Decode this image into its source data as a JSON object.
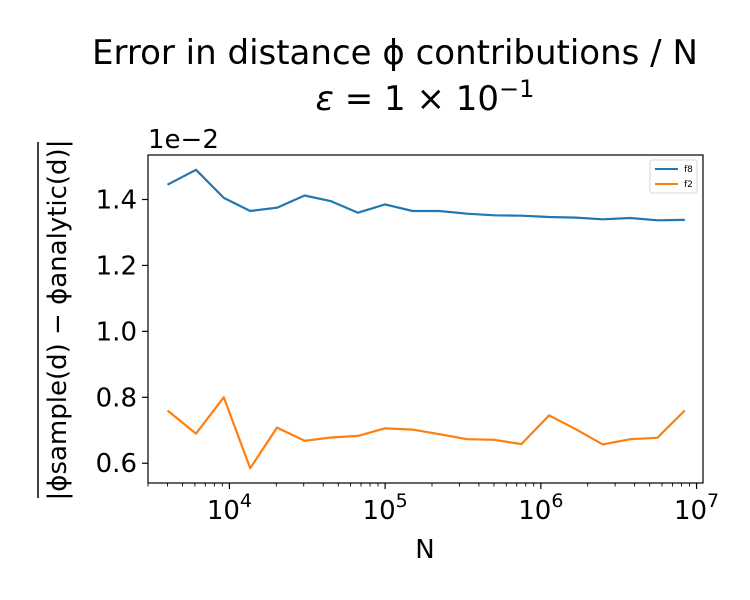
{
  "chart_data": {
    "type": "line",
    "title_line1": "Error in distance ϕ contributions / N",
    "title_eps": "ε",
    "title_rest": " = 1 × 10",
    "title_exp": "−1",
    "xlabel": "N",
    "ylabel": "|ϕsample(d) − ϕanalytic(d)|",
    "y_offset_label": "1e−2",
    "x_scale": "log",
    "xlim": [
      3000,
      11000000
    ],
    "ylim": [
      0.54,
      1.535
    ],
    "y_ticks": [
      {
        "value": 0.6,
        "label": "0.6"
      },
      {
        "value": 0.8,
        "label": "0.8"
      },
      {
        "value": 1.0,
        "label": "1.0"
      },
      {
        "value": 1.2,
        "label": "1.2"
      },
      {
        "value": 1.4,
        "label": "1.4"
      }
    ],
    "x_ticks": [
      {
        "value": 10000,
        "base": "10",
        "exp": "4"
      },
      {
        "value": 100000,
        "base": "10",
        "exp": "5"
      },
      {
        "value": 1000000,
        "base": "10",
        "exp": "6"
      },
      {
        "value": 10000000,
        "base": "10",
        "exp": "7"
      }
    ],
    "grid": false,
    "legend_position": "top-right",
    "series": [
      {
        "name": "f8",
        "color": "#1f77b4",
        "x": [
          4000,
          6100,
          9200,
          13600,
          20200,
          30400,
          45000,
          67000,
          100000,
          150000,
          223000,
          336000,
          500000,
          750000,
          1130000,
          1680000,
          2500000,
          3750000,
          5600000,
          8400000
        ],
        "y": [
          1.445,
          1.49,
          1.405,
          1.365,
          1.375,
          1.412,
          1.395,
          1.36,
          1.385,
          1.365,
          1.365,
          1.357,
          1.352,
          1.351,
          1.347,
          1.345,
          1.34,
          1.344,
          1.337,
          1.338
        ]
      },
      {
        "name": "f2",
        "color": "#ff7f0e",
        "x": [
          4000,
          6100,
          9200,
          13600,
          20200,
          30400,
          45000,
          67000,
          100000,
          150000,
          223000,
          336000,
          500000,
          750000,
          1130000,
          1680000,
          2500000,
          3750000,
          5600000,
          8400000
        ],
        "y": [
          0.76,
          0.69,
          0.8,
          0.585,
          0.708,
          0.668,
          0.678,
          0.683,
          0.706,
          0.702,
          0.688,
          0.673,
          0.671,
          0.658,
          0.745,
          0.703,
          0.657,
          0.673,
          0.677,
          0.76
        ]
      }
    ]
  }
}
